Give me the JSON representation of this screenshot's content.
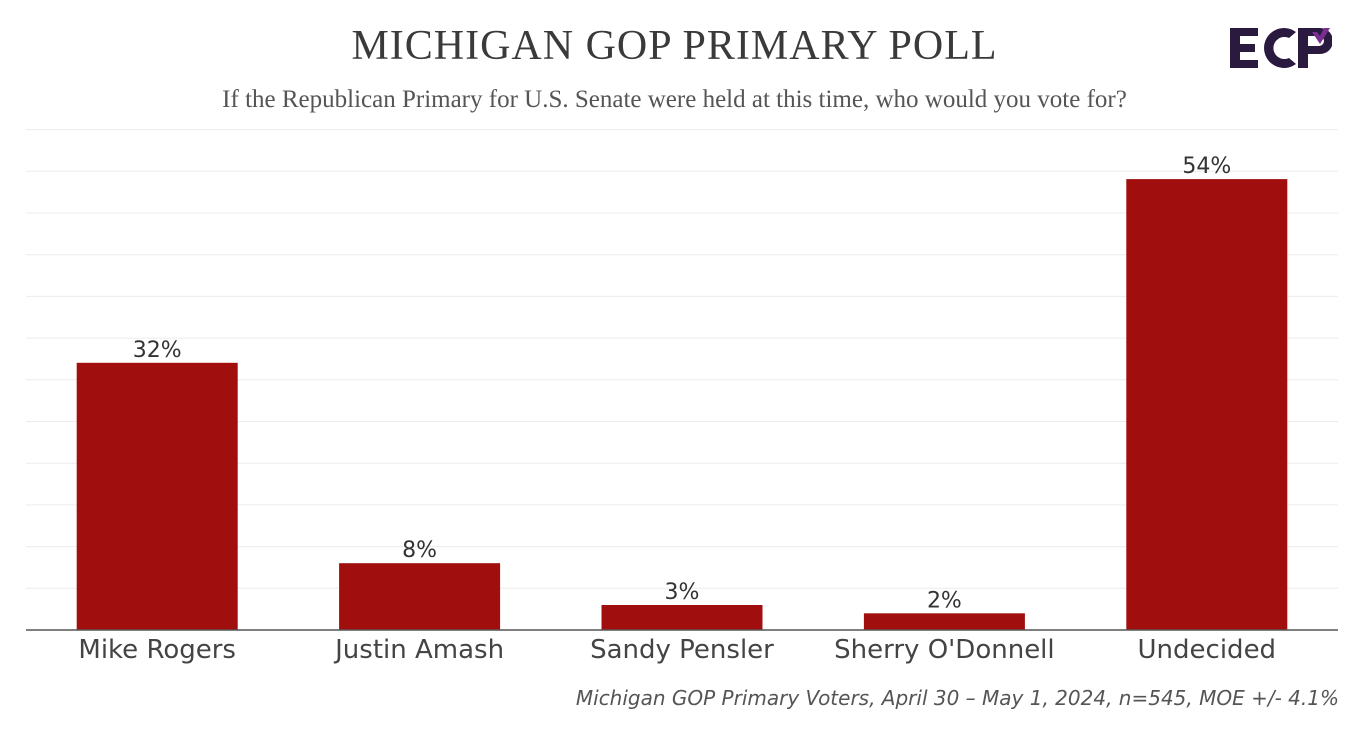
{
  "header": {
    "title": "MICHIGAN GOP PRIMARY POLL",
    "subtitle": "If the Republican Primary for U.S. Senate were held at this time, who would you vote for?",
    "logo_text": "ECP"
  },
  "colors": {
    "bar": "#a00f0d",
    "grid": "#ececec",
    "axis": "#555555",
    "text": "#333333",
    "logo_dark": "#2b1a3f",
    "logo_accent": "#7a2f8f"
  },
  "chart_data": {
    "type": "bar",
    "title": "MICHIGAN GOP PRIMARY POLL",
    "subtitle": "If the Republican Primary for U.S. Senate were held at this time, who would you vote for?",
    "categories": [
      "Mike Rogers",
      "Justin Amash",
      "Sandy Pensler",
      "Sherry O'Donnell",
      "Undecided"
    ],
    "values": [
      32,
      8,
      3,
      2,
      54
    ],
    "value_labels": [
      "32%",
      "8%",
      "3%",
      "2%",
      "54%"
    ],
    "ylim": [
      0,
      60
    ],
    "grid": true,
    "xlabel": "",
    "ylabel": ""
  },
  "footnote": "Michigan GOP Primary Voters, April 30 – May 1, 2024, n=545, MOE +/- 4.1%"
}
